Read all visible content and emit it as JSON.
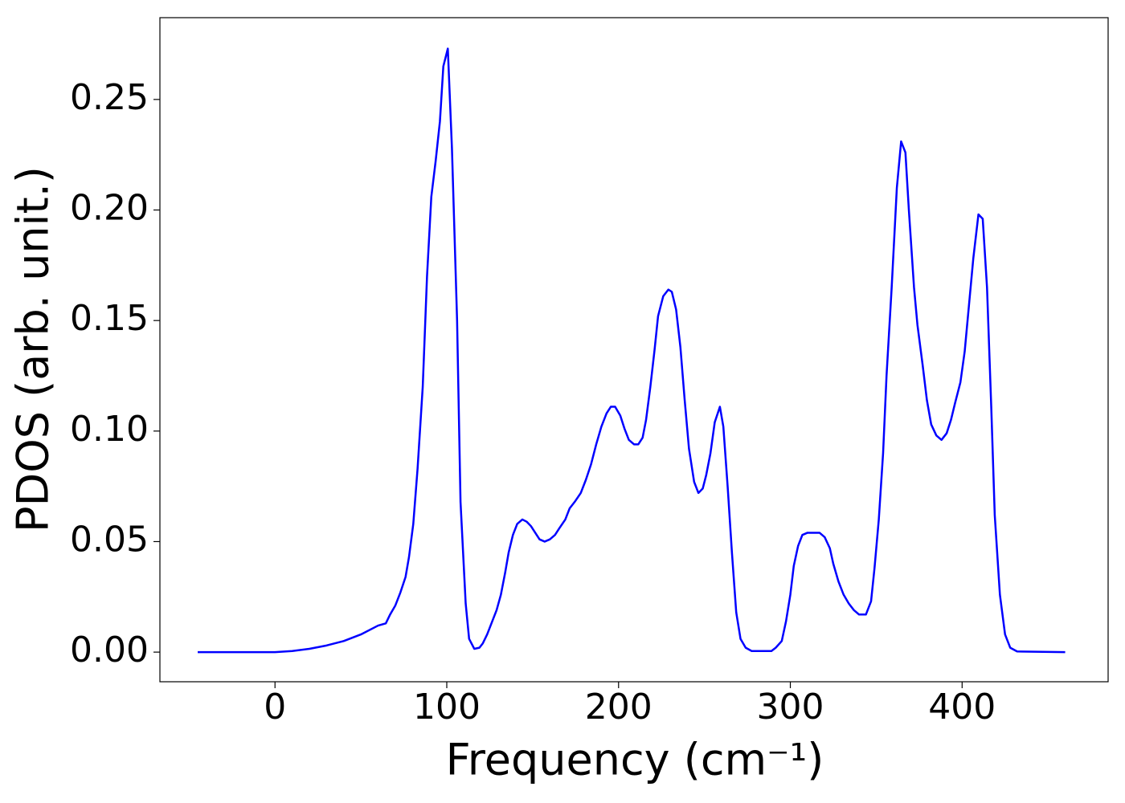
{
  "chart_data": {
    "type": "line",
    "xlabel": "Frequency (cm⁻¹)",
    "ylabel": "PDOS (arb. unit.)",
    "color": "#0000ff",
    "x": [
      -45,
      0,
      10,
      20,
      30,
      40,
      50,
      60,
      64.5,
      67,
      70,
      73,
      76,
      78,
      80.5,
      83,
      86,
      88.5,
      91,
      93.5,
      96,
      98,
      100.6,
      103,
      106,
      108,
      111,
      113,
      116,
      119,
      121,
      123.5,
      126,
      129,
      131.5,
      134,
      136,
      138.5,
      141,
      144,
      146.5,
      149,
      151.5,
      154,
      157,
      160,
      163,
      165.5,
      169,
      171.5,
      174.5,
      178,
      181,
      184,
      187,
      190,
      193,
      195.5,
      198,
      201,
      203.5,
      206,
      209,
      211.5,
      214,
      216,
      218.5,
      221,
      223,
      226,
      229,
      231,
      233.5,
      236,
      238.5,
      241,
      244,
      246.5,
      249,
      251,
      253.5,
      256,
      259,
      261,
      263.5,
      266,
      268.5,
      271,
      274,
      277.5,
      289,
      291.5,
      295,
      297.5,
      300,
      302,
      304.5,
      307,
      310,
      317,
      320,
      323,
      325,
      328,
      331,
      334,
      337,
      340,
      344,
      347,
      349,
      351.5,
      354,
      356,
      359,
      362,
      364.5,
      367,
      369,
      372,
      374,
      377,
      379.5,
      382,
      385,
      388,
      391,
      393.5,
      396,
      399,
      401.5,
      404,
      406.5,
      409.5,
      412,
      414.5,
      417,
      419,
      422,
      425,
      428,
      432,
      460
    ],
    "values": [
      0,
      0,
      0.0005,
      0.0015,
      0.003,
      0.005,
      0.008,
      0.012,
      0.013,
      0.017,
      0.021,
      0.027,
      0.034,
      0.043,
      0.058,
      0.083,
      0.12,
      0.17,
      0.206,
      0.222,
      0.24,
      0.265,
      0.273,
      0.228,
      0.15,
      0.068,
      0.022,
      0.006,
      0.0015,
      0.002,
      0.004,
      0.008,
      0.013,
      0.019,
      0.026,
      0.036,
      0.045,
      0.053,
      0.058,
      0.06,
      0.059,
      0.057,
      0.054,
      0.051,
      0.05,
      0.051,
      0.053,
      0.056,
      0.06,
      0.065,
      0.068,
      0.072,
      0.078,
      0.085,
      0.094,
      0.102,
      0.108,
      0.111,
      0.111,
      0.107,
      0.101,
      0.096,
      0.094,
      0.094,
      0.097,
      0.105,
      0.12,
      0.137,
      0.152,
      0.161,
      0.164,
      0.163,
      0.155,
      0.138,
      0.114,
      0.092,
      0.077,
      0.072,
      0.074,
      0.08,
      0.09,
      0.104,
      0.111,
      0.102,
      0.075,
      0.045,
      0.018,
      0.006,
      0.002,
      0.0005,
      0.0005,
      0.002,
      0.005,
      0.014,
      0.026,
      0.039,
      0.048,
      0.053,
      0.054,
      0.054,
      0.052,
      0.047,
      0.04,
      0.032,
      0.026,
      0.022,
      0.019,
      0.017,
      0.017,
      0.023,
      0.038,
      0.06,
      0.09,
      0.125,
      0.165,
      0.21,
      0.231,
      0.226,
      0.2,
      0.165,
      0.148,
      0.13,
      0.114,
      0.103,
      0.098,
      0.096,
      0.099,
      0.105,
      0.113,
      0.122,
      0.136,
      0.157,
      0.178,
      0.198,
      0.196,
      0.165,
      0.11,
      0.062,
      0.026,
      0.008,
      0.002,
      0.0003,
      0
    ],
    "xlim": [
      -67,
      485
    ],
    "ylim": [
      -0.0134,
      0.287
    ],
    "xticks": [
      0,
      100,
      200,
      300,
      400
    ],
    "yticks": [
      {
        "value": 0,
        "label": "0.00"
      },
      {
        "value": 0.05,
        "label": "0.05"
      },
      {
        "value": 0.1,
        "label": "0.10"
      },
      {
        "value": 0.15,
        "label": "0.15"
      },
      {
        "value": 0.2,
        "label": "0.20"
      },
      {
        "value": 0.25,
        "label": "0.25"
      }
    ],
    "grid": false
  }
}
